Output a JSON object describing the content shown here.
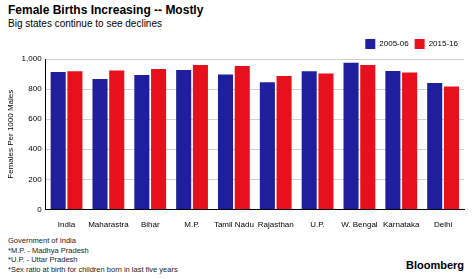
{
  "chart_data": {
    "type": "bar",
    "title": "Female Births Increasing -- Mostly",
    "subtitle": "Big states continue to see declines",
    "y_label": "Females Per 1000 Males",
    "categories": [
      "India",
      "Maharastra",
      "Bihar",
      "M.P.",
      "Tamil Nadu",
      "Rajasthan",
      "U.P.",
      "W. Bengal",
      "Karnataka",
      "Delhi"
    ],
    "series": [
      {
        "name": "2005-06",
        "color": "#1f1f9e",
        "values": [
          914,
          867,
          893,
          927,
          897,
          845,
          919,
          975,
          921,
          840
        ]
      },
      {
        "name": "2015-16",
        "color": "#e8101c",
        "values": [
          919,
          924,
          934,
          960,
          954,
          887,
          903,
          960,
          910,
          817
        ]
      }
    ],
    "ylim": [
      0,
      1000
    ],
    "yticks": [
      0,
      200,
      400,
      600,
      800,
      1000
    ],
    "grid": true,
    "legend": "top",
    "source": "Government of India",
    "notes": [
      "*M.P. - Madhya Pradesh",
      "*U.P. - Uttar Pradesh",
      "*Sex ratio at birth for children born in last five years"
    ],
    "credit": "Bloomberg"
  }
}
